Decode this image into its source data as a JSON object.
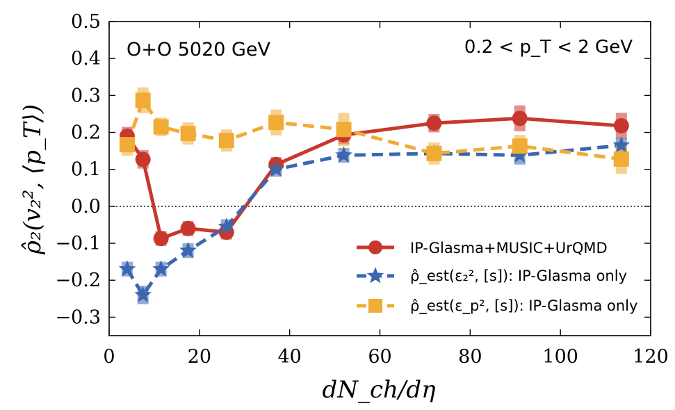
{
  "chart_data": {
    "type": "line",
    "title": "",
    "annotations": {
      "system": "O+O 5020 GeV",
      "pt_range": "0.2 < p_T < 2 GeV"
    },
    "xlabel": "dN_ch/dη",
    "ylabel": "ρ̂₂(v₂², ⟨p_T⟩)",
    "xlim": [
      0,
      120
    ],
    "ylim": [
      -0.35,
      0.5
    ],
    "xticks": [
      0,
      20,
      40,
      60,
      80,
      100,
      120
    ],
    "yticks": [
      -0.3,
      -0.2,
      -0.1,
      0.0,
      0.1,
      0.2,
      0.3,
      0.4,
      0.5
    ],
    "xtick_labels": [
      "0",
      "20",
      "40",
      "60",
      "80",
      "100",
      "120"
    ],
    "ytick_labels": [
      "−0.3",
      "−0.2",
      "−0.1",
      "0.0",
      "0.1",
      "0.2",
      "0.3",
      "0.4",
      "0.5"
    ],
    "reference_line_y": 0.0,
    "legend_position": "bottom-right",
    "series": [
      {
        "name": "IP-Glasma+MUSIC+UrQMD",
        "color": "#c8372d",
        "marker": "circle",
        "linestyle": "solid",
        "x": [
          4,
          7.5,
          11.5,
          17.5,
          26,
          37,
          52,
          72,
          91,
          113.5
        ],
        "y": [
          0.19,
          0.127,
          -0.087,
          -0.06,
          -0.07,
          0.113,
          0.193,
          0.225,
          0.238,
          0.218
        ],
        "err": [
          0.025,
          0.025,
          0.02,
          0.02,
          0.02,
          0.02,
          0.025,
          0.025,
          0.035,
          0.035
        ]
      },
      {
        "name": "ρ̂_est(ε₂², [s]): IP-Glasma only",
        "color": "#3b66b0",
        "marker": "star",
        "linestyle": "dashed",
        "x": [
          4,
          7.5,
          11.5,
          17.5,
          26,
          37,
          52,
          72,
          91,
          113.5
        ],
        "y": [
          -0.17,
          -0.24,
          -0.17,
          -0.12,
          -0.055,
          0.1,
          0.138,
          0.143,
          0.138,
          0.165
        ],
        "err": [
          0.02,
          0.025,
          0.02,
          0.02,
          0.02,
          0.02,
          0.02,
          0.02,
          0.025,
          0.02
        ]
      },
      {
        "name": "ρ̂_est(ε_p², [s]): IP-Glasma only",
        "color": "#f0ac35",
        "marker": "square",
        "linestyle": "dashed",
        "x": [
          4,
          7.5,
          11.5,
          17.5,
          26,
          37,
          52,
          72,
          91,
          113.5
        ],
        "y": [
          0.167,
          0.287,
          0.215,
          0.197,
          0.178,
          0.227,
          0.208,
          0.143,
          0.163,
          0.128
        ],
        "err": [
          0.03,
          0.035,
          0.025,
          0.03,
          0.03,
          0.035,
          0.045,
          0.03,
          0.03,
          0.04
        ]
      }
    ]
  }
}
